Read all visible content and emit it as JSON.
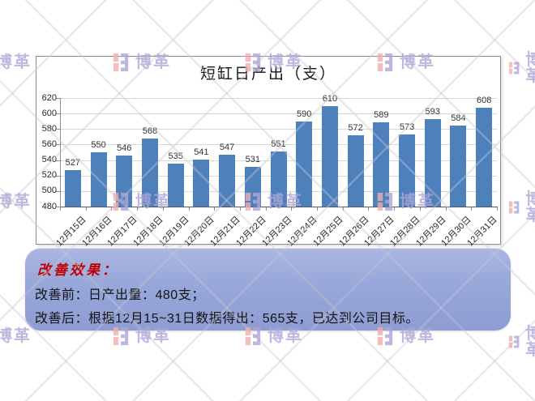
{
  "chart_data": {
    "type": "bar",
    "title": "短缸日产出（支）",
    "categories": [
      "12月15日",
      "12月16日",
      "12月17日",
      "12月18日",
      "12月19日",
      "12月20日",
      "12月21日",
      "12月22日",
      "12月23日",
      "12月24日",
      "12月25日",
      "12月26日",
      "12月27日",
      "12月28日",
      "12月29日",
      "12月30日",
      "12月31日"
    ],
    "values": [
      527,
      550,
      546,
      568,
      535,
      541,
      547,
      531,
      551,
      590,
      610,
      572,
      589,
      573,
      593,
      584,
      608
    ],
    "xlabel": "",
    "ylabel": "",
    "ylim": [
      480,
      620
    ],
    "ytick_step": 20,
    "grid": true,
    "legend": false,
    "data_labels": true,
    "bar_color": "#4e80bc",
    "gridline_color": "#d8d8d8",
    "axis_color": "#8c8c8c",
    "x_axis_line_color": "#595959"
  },
  "summary_box": {
    "heading": "改善效果：",
    "heading_color": "#c00000",
    "lines": [
      "改善前：日产出量：480支；",
      "改善后：根据12月15~31日数据得出：565支，已达到公司目标。"
    ]
  },
  "watermark": {
    "brand_text": "博革",
    "text_color": "#aea6d6",
    "mark_pink": "#f0aeae",
    "mark_purple": "#aea6d6"
  }
}
